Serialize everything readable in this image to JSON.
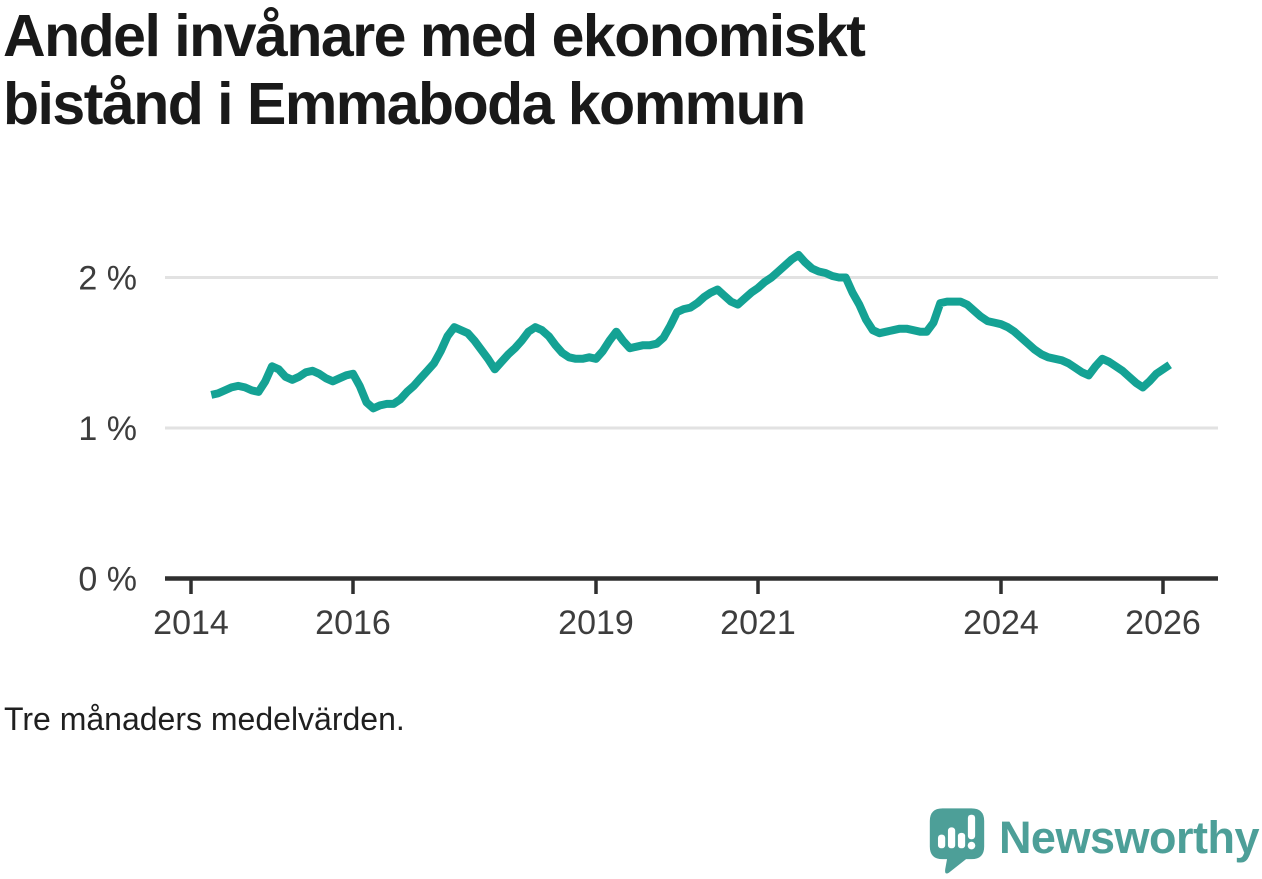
{
  "title": {
    "line1": "Andel invånare med ekonomiskt",
    "line2": "bistånd i Emmaboda kommun"
  },
  "footnote": "Tre månaders medelvärden.",
  "branding": {
    "name": "Newsworthy",
    "logo_icon": "newsworthy-speech-bubble-bar-chart-icon"
  },
  "colors": {
    "line": "#14a294",
    "brand_teal": "#4d9f98",
    "grid": "#e2e2e2",
    "axis": "#2f2f2f",
    "tick_label": "#3d3d3d",
    "title_text": "#191919",
    "footnote_text": "#1f1f1f"
  },
  "chart_data": {
    "type": "line",
    "title": "Andel invånare med ekonomiskt bistånd i Emmaboda kommun",
    "subtitle_note": "Tre månaders medelvärden.",
    "unit": "%",
    "xlabel": "",
    "ylabel": "",
    "grid": "horizontal-only",
    "legend": "none",
    "xlim": [
      2013.68,
      2026.68
    ],
    "ylim": [
      0,
      2.4
    ],
    "x_ticks": [
      2014,
      2016,
      2019,
      2021,
      2024,
      2026
    ],
    "y_ticks": [
      {
        "value": 0,
        "label": "0 %"
      },
      {
        "value": 1,
        "label": "1 %"
      },
      {
        "value": 2,
        "label": "2 %"
      }
    ],
    "series": [
      {
        "name": "Andel invånare med ekonomiskt bistånd",
        "frequency": "monthly",
        "start_year": 2014,
        "start_month": 4,
        "values": [
          1.22,
          1.23,
          1.25,
          1.27,
          1.28,
          1.27,
          1.25,
          1.24,
          1.31,
          1.41,
          1.39,
          1.34,
          1.32,
          1.34,
          1.37,
          1.38,
          1.36,
          1.33,
          1.31,
          1.33,
          1.35,
          1.36,
          1.28,
          1.17,
          1.13,
          1.15,
          1.16,
          1.16,
          1.19,
          1.24,
          1.28,
          1.33,
          1.38,
          1.43,
          1.51,
          1.61,
          1.67,
          1.65,
          1.63,
          1.58,
          1.52,
          1.46,
          1.39,
          1.44,
          1.49,
          1.53,
          1.58,
          1.64,
          1.67,
          1.65,
          1.61,
          1.55,
          1.5,
          1.47,
          1.46,
          1.46,
          1.47,
          1.46,
          1.51,
          1.58,
          1.64,
          1.58,
          1.53,
          1.54,
          1.55,
          1.55,
          1.56,
          1.6,
          1.68,
          1.77,
          1.79,
          1.8,
          1.83,
          1.87,
          1.9,
          1.92,
          1.88,
          1.84,
          1.82,
          1.86,
          1.9,
          1.93,
          1.97,
          2.0,
          2.04,
          2.08,
          2.12,
          2.15,
          2.1,
          2.06,
          2.04,
          2.03,
          2.01,
          2.0,
          2.0,
          1.9,
          1.82,
          1.72,
          1.65,
          1.63,
          1.64,
          1.65,
          1.66,
          1.66,
          1.65,
          1.64,
          1.64,
          1.7,
          1.83,
          1.84,
          1.84,
          1.84,
          1.82,
          1.78,
          1.74,
          1.71,
          1.7,
          1.69,
          1.67,
          1.64,
          1.6,
          1.56,
          1.52,
          1.49,
          1.47,
          1.46,
          1.45,
          1.43,
          1.4,
          1.37,
          1.35,
          1.41,
          1.46,
          1.44,
          1.41,
          1.38,
          1.34,
          1.3,
          1.27,
          1.31,
          1.36,
          1.39,
          1.42
        ]
      }
    ]
  }
}
